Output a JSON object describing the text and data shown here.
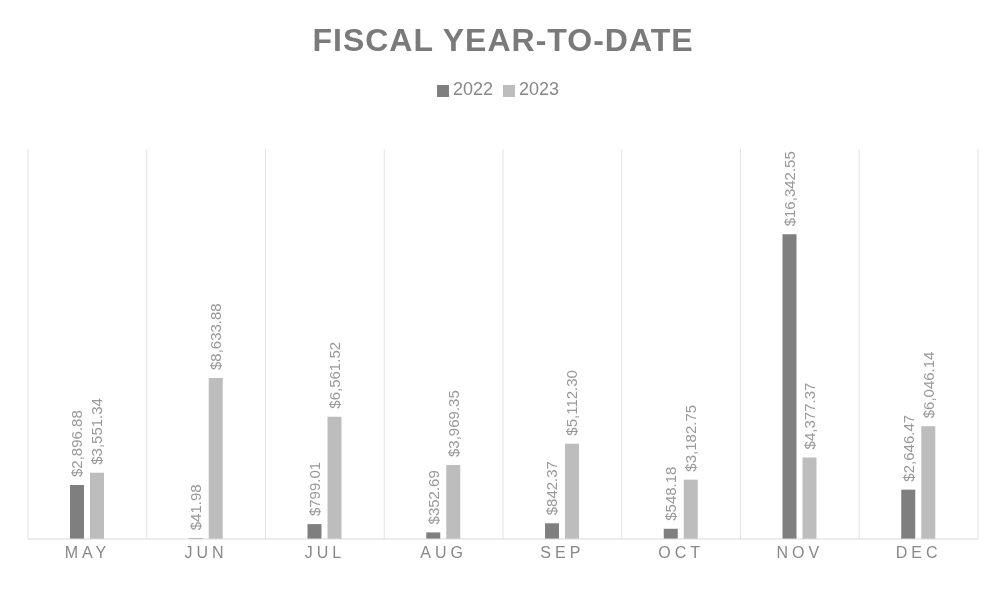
{
  "chart_data": {
    "type": "bar",
    "title": "FISCAL YEAR-TO-DATE",
    "categories": [
      "MAY",
      "JUN",
      "JUL",
      "AUG",
      "SEP",
      "OCT",
      "NOV",
      "DEC"
    ],
    "series": [
      {
        "name": "2022",
        "color": "#7f7f7f",
        "values": [
          2896.88,
          41.98,
          799.01,
          352.69,
          842.37,
          548.18,
          16342.55,
          2646.47
        ],
        "value_labels": [
          "$2,896.88",
          "$41.98",
          "$799.01",
          "$352.69",
          "$842.37",
          "$548.18",
          "$16,342.55",
          "$2,646.47"
        ]
      },
      {
        "name": "2023",
        "color": "#bdbdbd",
        "values": [
          3551.34,
          8633.88,
          6561.52,
          3969.35,
          5112.3,
          3182.75,
          4377.37,
          6046.14
        ],
        "value_labels": [
          "$3,551.34",
          "$8,633.88",
          "$6,561.52",
          "$3,969.35",
          "$5,112.30",
          "$3,182.75",
          "$4,377.37",
          "$6,046.14"
        ]
      }
    ],
    "legend": "top",
    "grid": "x"
  }
}
